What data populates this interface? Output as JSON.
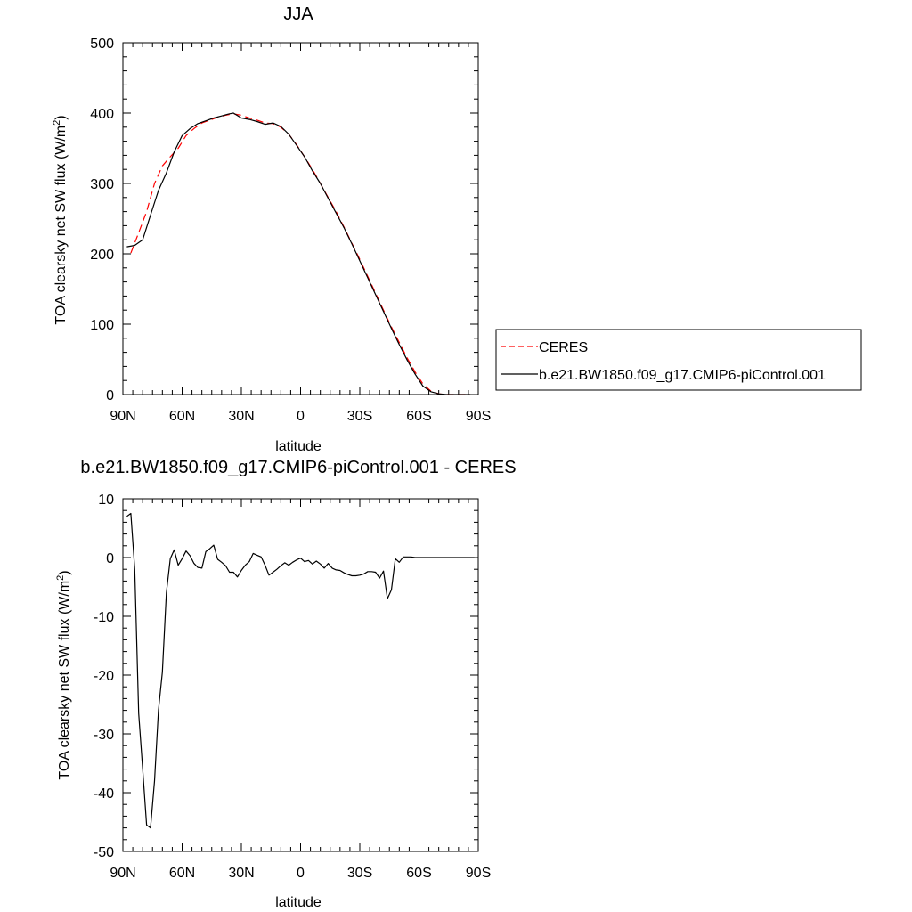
{
  "chart_data": [
    {
      "type": "line",
      "title": "JJA",
      "xlabel": "latitude",
      "ylabel": "TOA clearsky net SW flux (W/m²)",
      "xlim": [
        90,
        -90
      ],
      "ylim": [
        0,
        500
      ],
      "x_ticks": [
        90,
        60,
        30,
        0,
        -30,
        -60,
        -90
      ],
      "x_tick_labels": [
        "90N",
        "60N",
        "30N",
        "0",
        "30S",
        "60S",
        "90S"
      ],
      "y_ticks": [
        0,
        100,
        200,
        300,
        400,
        500
      ],
      "y_tick_labels": [
        "0",
        "100",
        "200",
        "300",
        "400",
        "500"
      ],
      "grid": false,
      "legend_position": "right",
      "series": [
        {
          "name": "CERES",
          "color": "#ff0000",
          "dash": "dashed",
          "x": [
            86,
            82,
            78,
            74,
            70,
            66,
            62,
            58,
            54,
            50,
            46,
            42,
            38,
            34,
            30,
            26,
            22,
            18,
            14,
            10,
            6,
            2,
            -2,
            -6,
            -10,
            -14,
            -18,
            -22,
            -26,
            -30,
            -34,
            -38,
            -42,
            -46,
            -50,
            -54,
            -58,
            -62,
            -66,
            -70,
            -74,
            -78,
            -82,
            -86
          ],
          "y": [
            201,
            230,
            260,
            300,
            325,
            338,
            350,
            368,
            378,
            386,
            390,
            394,
            397,
            399,
            397,
            393,
            390,
            386,
            385,
            380,
            370,
            355,
            338,
            320,
            300,
            280,
            260,
            238,
            215,
            192,
            168,
            144,
            120,
            96,
            74,
            52,
            32,
            15,
            5,
            1,
            0,
            0,
            0,
            0
          ]
        },
        {
          "name": "b.e21.BW1850.f09_g17.CMIP6-piControl.001",
          "color": "#000000",
          "dash": "solid",
          "x": [
            88,
            84,
            80,
            76,
            72,
            68,
            64,
            60,
            56,
            52,
            48,
            44,
            40,
            36,
            34,
            30,
            26,
            22,
            18,
            14,
            10,
            6,
            2,
            -2,
            -6,
            -10,
            -14,
            -18,
            -22,
            -26,
            -30,
            -34,
            -38,
            -42,
            -46,
            -50,
            -54,
            -58,
            -62,
            -66,
            -70,
            -74,
            -78,
            -82,
            -86
          ],
          "y": [
            210,
            212,
            220,
            255,
            290,
            315,
            345,
            368,
            378,
            385,
            389,
            393,
            396,
            399,
            400,
            393,
            391,
            388,
            384,
            386,
            381,
            370,
            354,
            338,
            318,
            300,
            279,
            258,
            237,
            214,
            190,
            166,
            142,
            118,
            94,
            71,
            49,
            29,
            12,
            4,
            1,
            0,
            0,
            0,
            0
          ]
        }
      ]
    },
    {
      "type": "line",
      "title": "b.e21.BW1850.f09_g17.CMIP6-piControl.001 - CERES",
      "xlabel": "latitude",
      "ylabel": "TOA clearsky net SW flux (W/m²)",
      "xlim": [
        90,
        -90
      ],
      "ylim": [
        -50,
        10
      ],
      "x_ticks": [
        90,
        60,
        30,
        0,
        -30,
        -60,
        -90
      ],
      "x_tick_labels": [
        "90N",
        "60N",
        "30N",
        "0",
        "30S",
        "60S",
        "90S"
      ],
      "y_ticks": [
        -50,
        -40,
        -30,
        -20,
        -10,
        0,
        10
      ],
      "y_tick_labels": [
        "-50",
        "-40",
        "-30",
        "-20",
        "-10",
        "0",
        "10"
      ],
      "grid": false,
      "series": [
        {
          "color": "#000000",
          "dash": "solid",
          "x": [
            88,
            86,
            84,
            82,
            80,
            78,
            76,
            74,
            72,
            70,
            68,
            66,
            64,
            62,
            60,
            58,
            56,
            54,
            52,
            50,
            48,
            46,
            44,
            42,
            40,
            38,
            36,
            34,
            32,
            30,
            28,
            26,
            24,
            22,
            20,
            18,
            16,
            14,
            12,
            10,
            8,
            6,
            4,
            2,
            0,
            -2,
            -4,
            -6,
            -8,
            -10,
            -12,
            -14,
            -16,
            -18,
            -20,
            -22,
            -24,
            -26,
            -28,
            -30,
            -32,
            -34,
            -36,
            -38,
            -40,
            -42,
            -44,
            -46,
            -48,
            -50,
            -52,
            -54,
            -56,
            -58,
            -60,
            -62,
            -64,
            -66,
            -68,
            -70,
            -72,
            -74,
            -76,
            -78,
            -80,
            -82,
            -84,
            -86,
            -88
          ],
          "y": [
            7,
            7.5,
            -2,
            -26.5,
            -36,
            -45.5,
            -46,
            -38,
            -26,
            -19.5,
            -6,
            -0.2,
            1.3,
            -1.3,
            -0.2,
            1.1,
            0.3,
            -1,
            -1.7,
            -1.8,
            1,
            1.5,
            2.1,
            -0.3,
            -0.8,
            -1.4,
            -2.5,
            -2.5,
            -3.3,
            -2.2,
            -1.3,
            -0.7,
            0.7,
            0.4,
            0.1,
            -1.3,
            -3,
            -2.5,
            -2,
            -1.4,
            -0.9,
            -1.3,
            -0.8,
            -0.4,
            -0.1,
            -0.7,
            -0.5,
            -1.1,
            -0.6,
            -1.1,
            -1.8,
            -1,
            -1.8,
            -2.1,
            -2.2,
            -2.6,
            -2.9,
            -3.1,
            -3.1,
            -3,
            -2.8,
            -2.4,
            -2.4,
            -2.5,
            -3.5,
            -2.3,
            -7,
            -5.5,
            -0.2,
            -0.8,
            0.1,
            0.1,
            0.1,
            0,
            0,
            0,
            0,
            0,
            0,
            0,
            0,
            0,
            0,
            0,
            0,
            0,
            0,
            0,
            0
          ]
        }
      ]
    }
  ]
}
